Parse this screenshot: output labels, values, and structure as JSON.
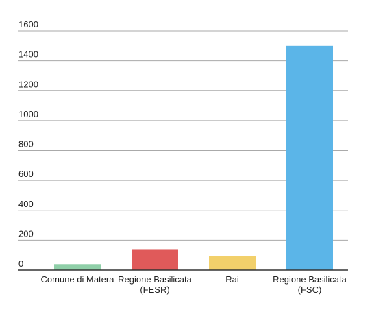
{
  "chart_data": {
    "type": "bar",
    "categories": [
      [
        "Comune di Matera"
      ],
      [
        "Regione Basilicata",
        "(FESR)"
      ],
      [
        "Rai"
      ],
      [
        "Regione Basilicata",
        "(FSC)"
      ]
    ],
    "values": [
      40,
      140,
      95,
      1500
    ],
    "colors": [
      "#8fcfa8",
      "#e05a5a",
      "#f2d06b",
      "#5bb5e8"
    ],
    "yticks": [
      0,
      200,
      400,
      600,
      800,
      1000,
      1200,
      1400,
      1600
    ],
    "ylim": [
      0,
      1600
    ],
    "grid": true,
    "legend": "none",
    "title": "",
    "xlabel": "",
    "ylabel": ""
  }
}
